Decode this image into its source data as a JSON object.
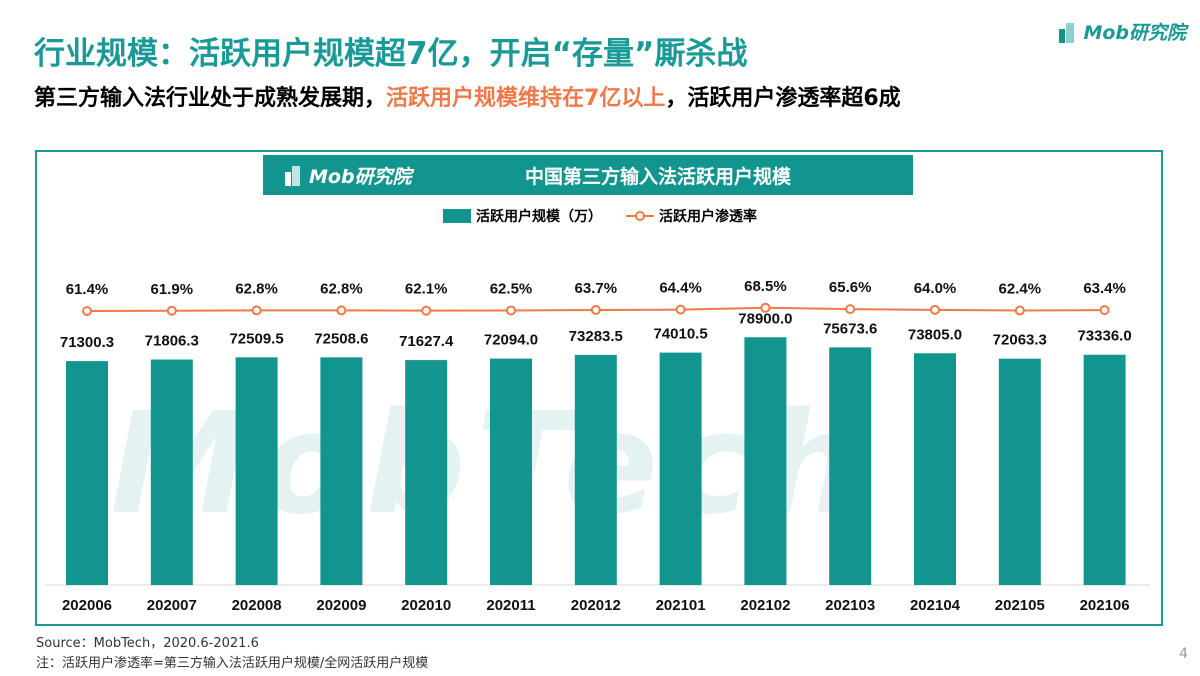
{
  "header": {
    "title": "行业规模：活跃用户规模超7亿，开启“存量”厮杀战",
    "subtitle_part1": "第三方输入法行业处于成熟发展期，",
    "subtitle_highlight": "活跃用户规模维持在7亿以上",
    "subtitle_part2": "，活跃用户渗透率超6成",
    "logo": "Mob研究院"
  },
  "watermark": "MobTech",
  "colors": {
    "accent": "#13958f",
    "line": "#f07a47",
    "highlight": "#f07a47"
  },
  "chart_data": {
    "type": "bar+line",
    "title": "中国第三方输入法活跃用户规模",
    "categories": [
      "202006",
      "202007",
      "202008",
      "202009",
      "202010",
      "202011",
      "202012",
      "202101",
      "202102",
      "202103",
      "202104",
      "202105",
      "202106"
    ],
    "series": [
      {
        "name": "活跃用户规模（万）",
        "type": "bar",
        "values": [
          71300.3,
          71806.3,
          72509.5,
          72508.6,
          71627.4,
          72094.0,
          73283.5,
          74010.5,
          78900.0,
          75673.6,
          73805.0,
          72063.3,
          73336.0
        ]
      },
      {
        "name": "活跃用户渗透率",
        "type": "line",
        "values": [
          61.4,
          61.9,
          62.8,
          62.8,
          62.1,
          62.5,
          63.7,
          64.4,
          68.5,
          65.6,
          64.0,
          62.4,
          63.4
        ]
      }
    ],
    "ylim": [
      0,
      100000
    ],
    "legend": "top",
    "grid": false
  },
  "footer": {
    "source": "Source：MobTech，2020.6-2021.6",
    "note": "注：活跃用户渗透率=第三方输入法活跃用户规模/全网活跃用户规模",
    "page": "4"
  }
}
